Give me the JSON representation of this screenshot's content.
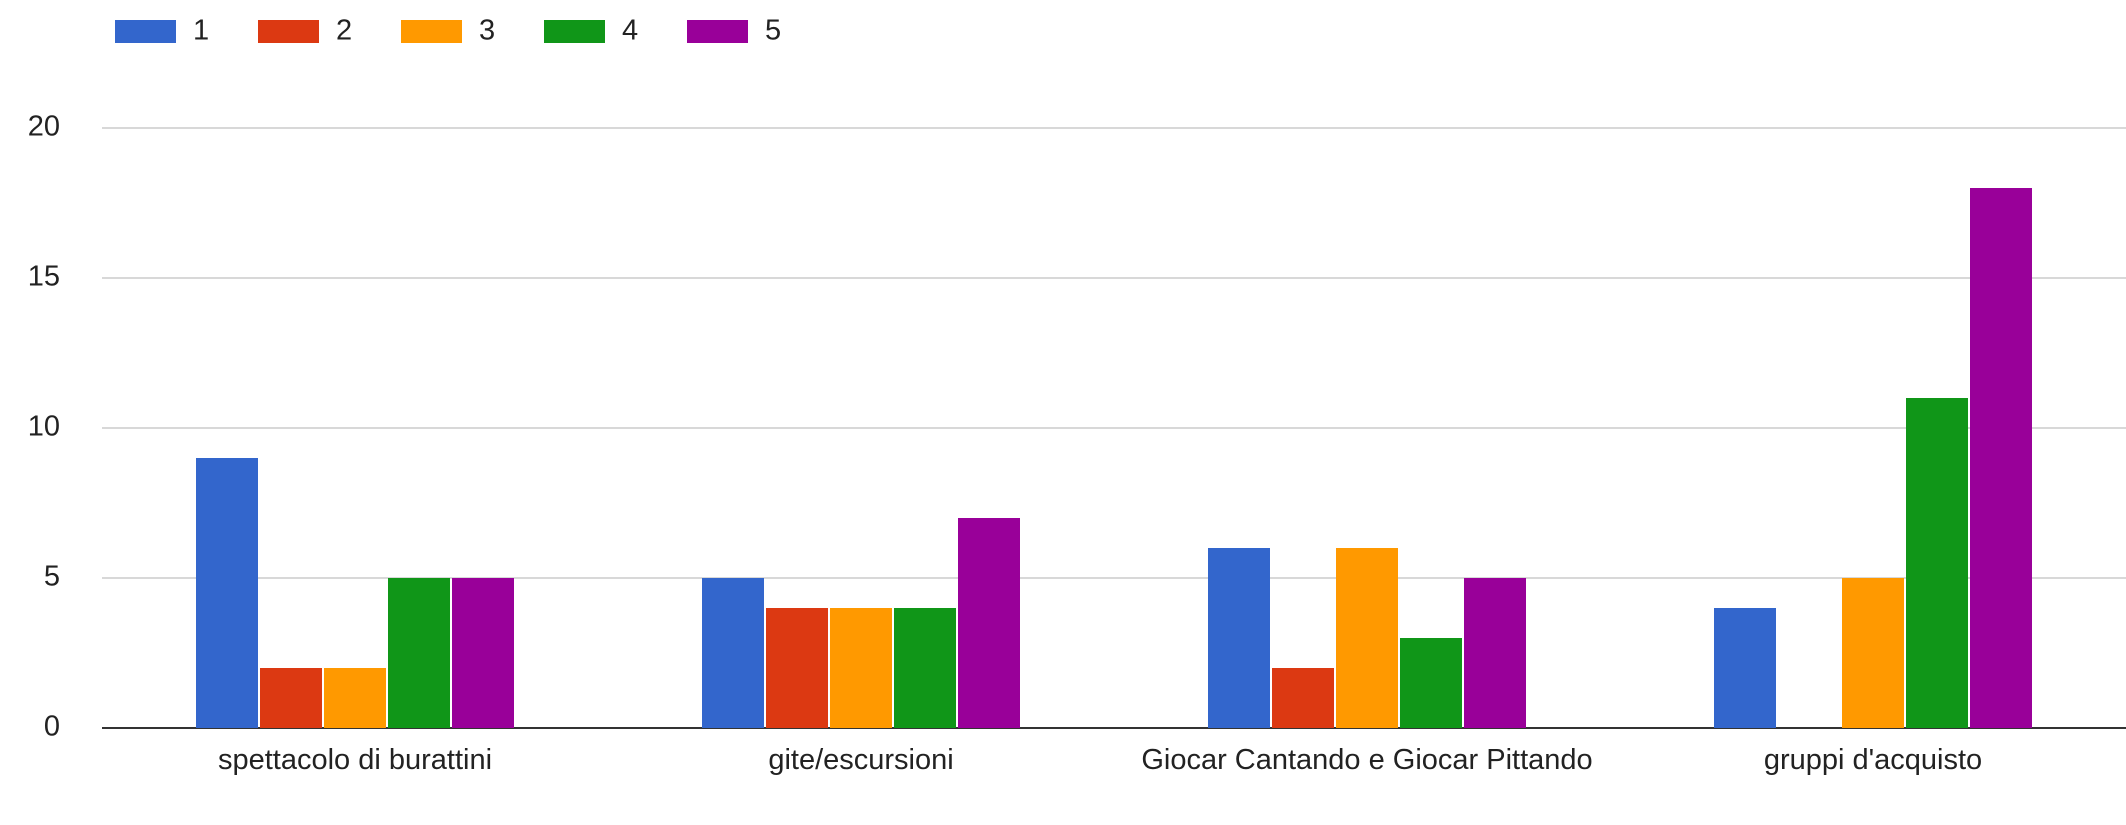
{
  "chart_data": {
    "type": "bar",
    "categories": [
      "spettacolo di burattini",
      "gite/escursioni",
      "Giocar Cantando e Giocar Pittando",
      "gruppi d'acquisto"
    ],
    "series": [
      {
        "name": "1",
        "color": "#3366cc",
        "values": [
          9,
          5,
          6,
          4
        ]
      },
      {
        "name": "2",
        "color": "#dc3912",
        "values": [
          2,
          4,
          2,
          0
        ]
      },
      {
        "name": "3",
        "color": "#ff9900",
        "values": [
          2,
          4,
          6,
          5
        ]
      },
      {
        "name": "4",
        "color": "#109618",
        "values": [
          5,
          4,
          3,
          11
        ]
      },
      {
        "name": "5",
        "color": "#990099",
        "values": [
          5,
          7,
          5,
          18
        ]
      }
    ],
    "ylim": [
      0,
      20
    ],
    "yticks": [
      0,
      5,
      10,
      15,
      20
    ],
    "grid": true,
    "legend": "top"
  }
}
